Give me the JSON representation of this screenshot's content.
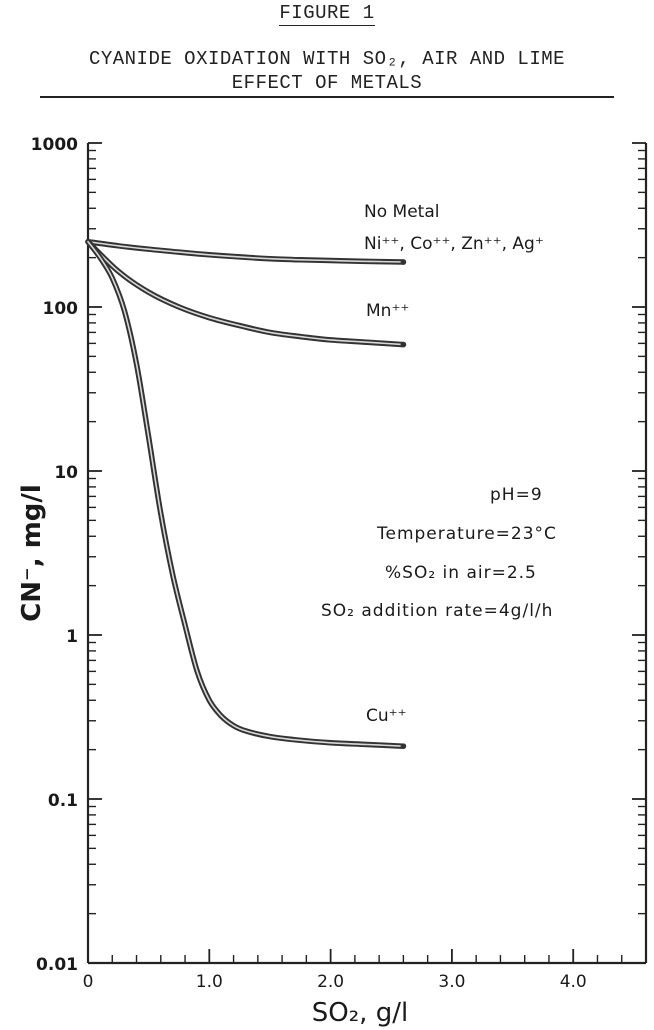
{
  "header": {
    "figure_label": "FIGURE 1",
    "title_line1": "CYANIDE OXIDATION WITH SO₂, AIR AND LIME",
    "title_line2": "EFFECT OF METALS"
  },
  "chart_data": {
    "type": "line",
    "title": "CYANIDE OXIDATION WITH SO₂, AIR AND LIME EFFECT OF METALS",
    "xlabel": "SO₂,  g/l",
    "ylabel": "CN⁻,  mg/l",
    "y_scale": "log",
    "xlim": [
      0,
      4.6
    ],
    "ylim": [
      0.01,
      1000
    ],
    "x_ticks": [
      0,
      1.0,
      2.0,
      3.0,
      4.0
    ],
    "x_tick_labels": [
      "0",
      "1.0",
      "2.0",
      "3.0",
      "4.0"
    ],
    "y_ticks": [
      0.01,
      0.1,
      1,
      10,
      100,
      1000
    ],
    "y_tick_labels": [
      "0.01",
      "0.1",
      "1",
      "10",
      "100",
      "1000"
    ],
    "series": [
      {
        "name": "No Metal / Ni⁺⁺, Co⁺⁺, Zn⁺⁺, Ag⁺",
        "x": [
          0,
          0.25,
          0.5,
          0.75,
          1.0,
          1.25,
          1.5,
          1.75,
          2.0,
          2.25,
          2.6
        ],
        "y": [
          250,
          236,
          225,
          216,
          208,
          202,
          197,
          194,
          192,
          190,
          188
        ],
        "color": "#555555"
      },
      {
        "name": "Mn⁺⁺",
        "x": [
          0,
          0.25,
          0.5,
          0.75,
          1.0,
          1.25,
          1.5,
          1.75,
          2.0,
          2.3,
          2.6
        ],
        "y": [
          250,
          165,
          123,
          100,
          86,
          77,
          70,
          66,
          63,
          61,
          59
        ],
        "color": "#555555"
      },
      {
        "name": "Cu⁺⁺",
        "x": [
          0,
          0.1,
          0.2,
          0.3,
          0.4,
          0.5,
          0.6,
          0.7,
          0.8,
          0.9,
          1.0,
          1.1,
          1.2,
          1.3,
          1.5,
          1.7,
          2.0,
          2.3,
          2.6
        ],
        "y": [
          250,
          200,
          150,
          95,
          45,
          16,
          5.5,
          2.3,
          1.15,
          0.6,
          0.4,
          0.32,
          0.28,
          0.26,
          0.24,
          0.23,
          0.22,
          0.215,
          0.21
        ],
        "color": "#555555"
      }
    ],
    "annotations": {
      "no_metal": "No  Metal",
      "group_metals": "Ni⁺⁺, Co⁺⁺, Zn⁺⁺, Ag⁺",
      "mn": "Mn⁺⁺",
      "cu": "Cu⁺⁺",
      "conditions": [
        "pH=9",
        "Temperature=23°C",
        "%SO₂ in  air=2.5",
        "SO₂ addition  rate=4g/l/h"
      ]
    },
    "grid": false,
    "legend": "none"
  }
}
